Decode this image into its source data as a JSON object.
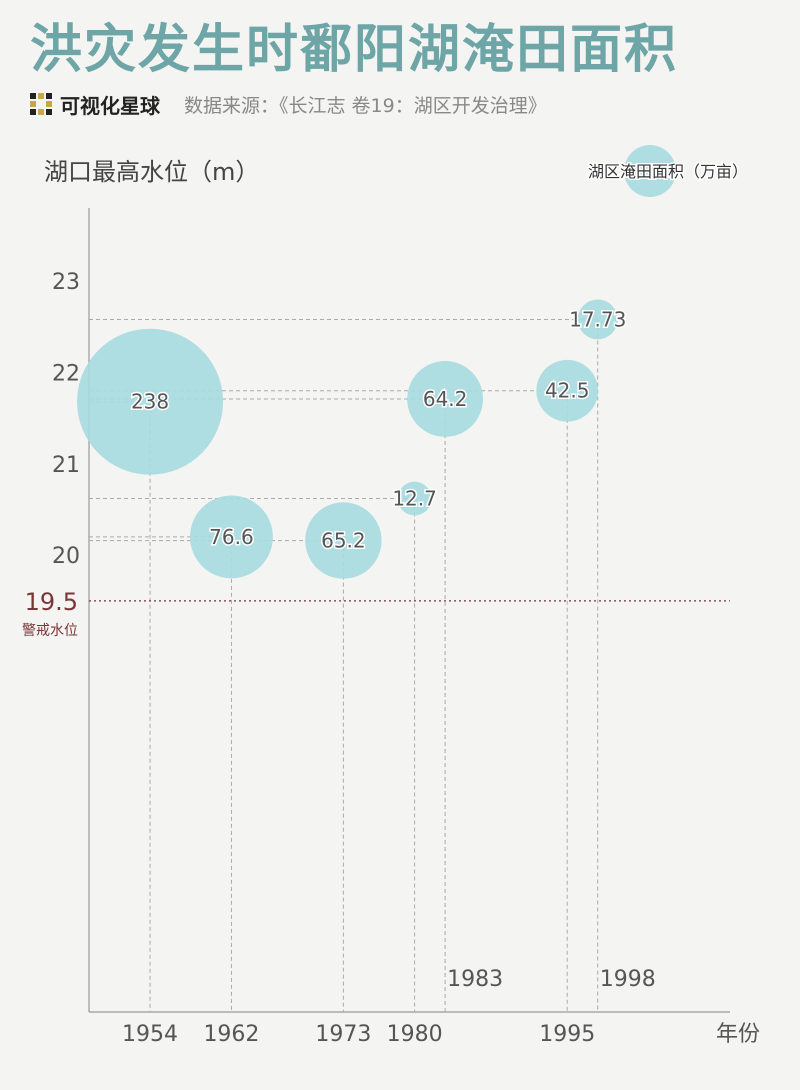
{
  "header": {
    "title": "洪灾发生时鄱阳湖淹田面积",
    "brand": "可视化星球",
    "source": "数据来源：《长江志  卷19：湖区开发治理》"
  },
  "colors": {
    "title": "#6ea5a6",
    "bubble": "#a6dbe0",
    "warning": "#7a3636",
    "axis": "#999999",
    "guide": "#aaaaaa"
  },
  "chart_data": {
    "type": "bubble",
    "title": "洪灾发生时鄱阳湖淹田面积",
    "ylabel": "湖口最高水位（m）",
    "xlabel": "年份",
    "ylim": [
      15.0,
      23.8
    ],
    "xlim": [
      1948,
      2011
    ],
    "yticks": [
      "20",
      "21",
      "22",
      "23"
    ],
    "size_legend": "湖区淹田面积（万亩）",
    "warning": {
      "value": 19.5,
      "value_label": "19.5",
      "label": "警戒水位"
    },
    "points": [
      {
        "year": 1954,
        "year_label": "1954",
        "level": 21.68,
        "area": 238,
        "area_label": "238"
      },
      {
        "year": 1962,
        "year_label": "1962",
        "level": 20.2,
        "area": 76.6,
        "area_label": "76.6"
      },
      {
        "year": 1973,
        "year_label": "1973",
        "level": 20.16,
        "area": 65.2,
        "area_label": "65.2"
      },
      {
        "year": 1980,
        "year_label": "1980",
        "level": 20.62,
        "area": 12.7,
        "area_label": "12.7"
      },
      {
        "year": 1983,
        "year_label": "1983",
        "level": 21.71,
        "area": 64.2,
        "area_label": "64.2"
      },
      {
        "year": 1995,
        "year_label": "1995",
        "level": 21.8,
        "area": 42.5,
        "area_label": "42.5"
      },
      {
        "year": 1998,
        "year_label": "1998",
        "level": 22.58,
        "area": 17.73,
        "area_label": "17.73"
      }
    ]
  }
}
